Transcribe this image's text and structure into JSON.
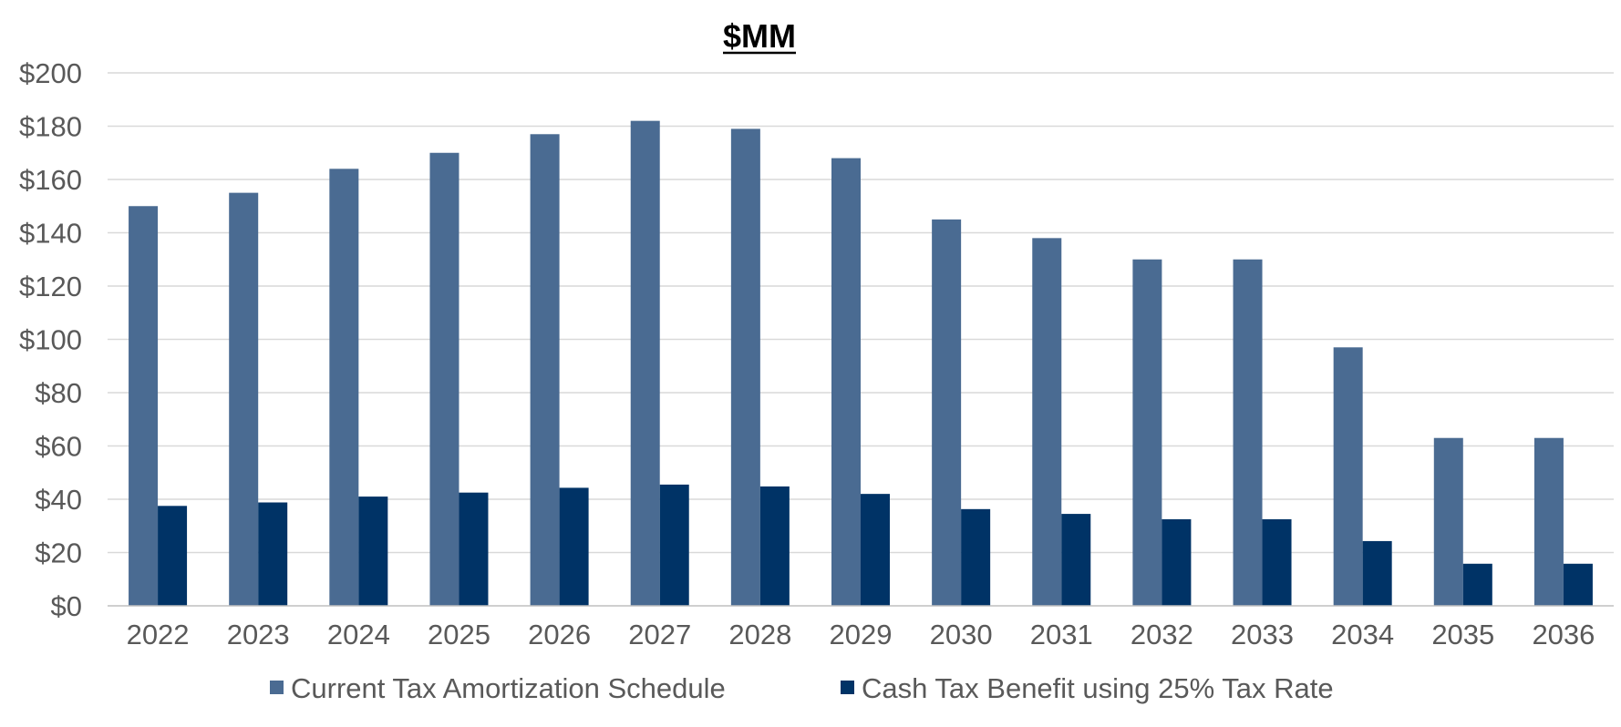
{
  "chart_data": {
    "type": "bar",
    "title": "$MM",
    "xlabel": "",
    "ylabel": "",
    "ylim": [
      0,
      200
    ],
    "y_ticks": [
      "$0",
      "$20",
      "$40",
      "$60",
      "$80",
      "$100",
      "$120",
      "$140",
      "$160",
      "$180",
      "$200"
    ],
    "grid": true,
    "legend_position": "bottom",
    "categories": [
      "2022",
      "2023",
      "2024",
      "2025",
      "2026",
      "2027",
      "2028",
      "2029",
      "2030",
      "2031",
      "2032",
      "2033",
      "2034",
      "2035",
      "2036"
    ],
    "series": [
      {
        "name": "Current Tax Amortization Schedule",
        "color": "#4a6b92",
        "values": [
          150,
          155,
          164,
          170,
          177,
          182,
          179,
          168,
          145,
          138,
          130,
          130,
          97,
          63,
          63
        ]
      },
      {
        "name": "Cash Tax Benefit using 25% Tax Rate",
        "color": "#003366",
        "values": [
          37.5,
          38.8,
          41,
          42.5,
          44.3,
          45.5,
          44.8,
          42,
          36.3,
          34.5,
          32.5,
          32.5,
          24.3,
          15.8,
          15.8
        ]
      }
    ]
  }
}
